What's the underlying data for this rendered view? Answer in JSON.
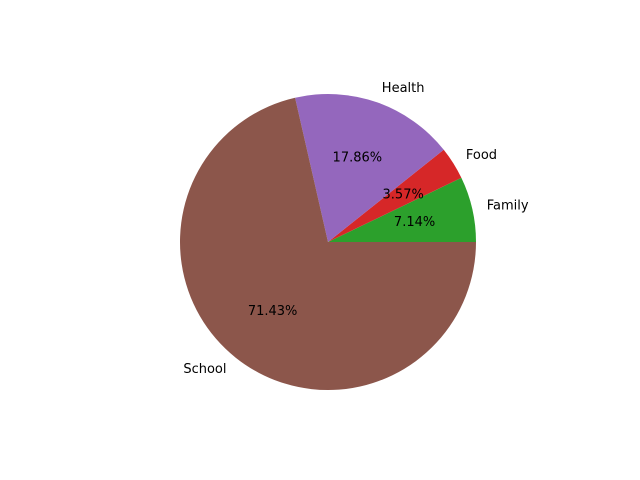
{
  "chart_data": {
    "type": "pie",
    "title": "",
    "start_angle_deg": 0,
    "direction": "counterclockwise",
    "slices": [
      {
        "label": "Family",
        "value": 7.14,
        "pct_label": "7.14%",
        "color": "#2ca02c"
      },
      {
        "label": "Food",
        "value": 3.57,
        "pct_label": "3.57%",
        "color": "#d62728"
      },
      {
        "label": "Health",
        "value": 17.86,
        "pct_label": "17.86%",
        "color": "#9467bd"
      },
      {
        "label": "School",
        "value": 71.43,
        "pct_label": "71.43%",
        "color": "#8c564b"
      }
    ]
  }
}
